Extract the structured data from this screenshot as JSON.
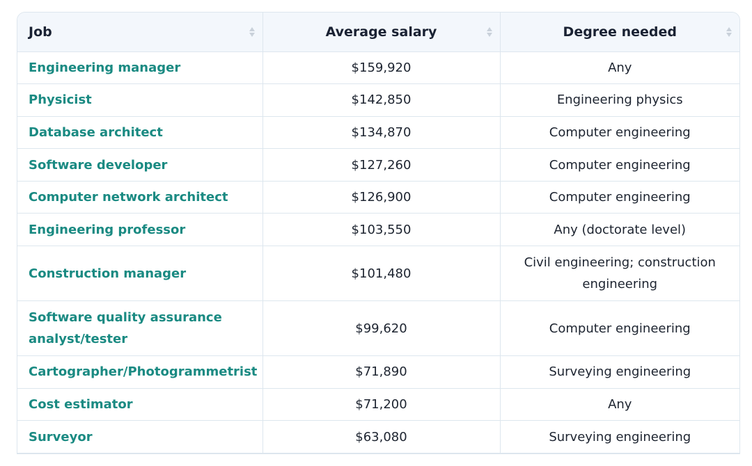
{
  "table": {
    "headers": {
      "job": "Job",
      "salary": "Average salary",
      "degree": "Degree needed"
    },
    "rows": [
      {
        "job": "Engineering manager",
        "salary": "$159,920",
        "degree": "Any"
      },
      {
        "job": "Physicist",
        "salary": "$142,850",
        "degree": "Engineering physics"
      },
      {
        "job": "Database architect",
        "salary": "$134,870",
        "degree": "Computer engineering"
      },
      {
        "job": "Software developer",
        "salary": "$127,260",
        "degree": "Computer engineering"
      },
      {
        "job": "Computer network architect",
        "salary": "$126,900",
        "degree": "Computer engineering"
      },
      {
        "job": "Engineering professor",
        "salary": "$103,550",
        "degree": "Any (doctorate level)"
      },
      {
        "job": "Construction manager",
        "salary": "$101,480",
        "degree": "Civil engineering; construction engineering"
      },
      {
        "job": "Software quality assurance analyst/tester",
        "salary": "$99,620",
        "degree": "Computer engineering"
      },
      {
        "job": "Cartographer/Photogrammetrist",
        "salary": "$71,890",
        "degree": "Surveying engineering"
      },
      {
        "job": "Cost estimator",
        "salary": "$71,200",
        "degree": "Any"
      },
      {
        "job": "Surveyor",
        "salary": "$63,080",
        "degree": "Surveying engineering"
      }
    ]
  },
  "colors": {
    "link": "#1a8a82",
    "header_bg": "#f3f7fc",
    "border": "#dde6ee",
    "text": "#1d2430"
  },
  "icons": {
    "sort": "sort-icon"
  }
}
